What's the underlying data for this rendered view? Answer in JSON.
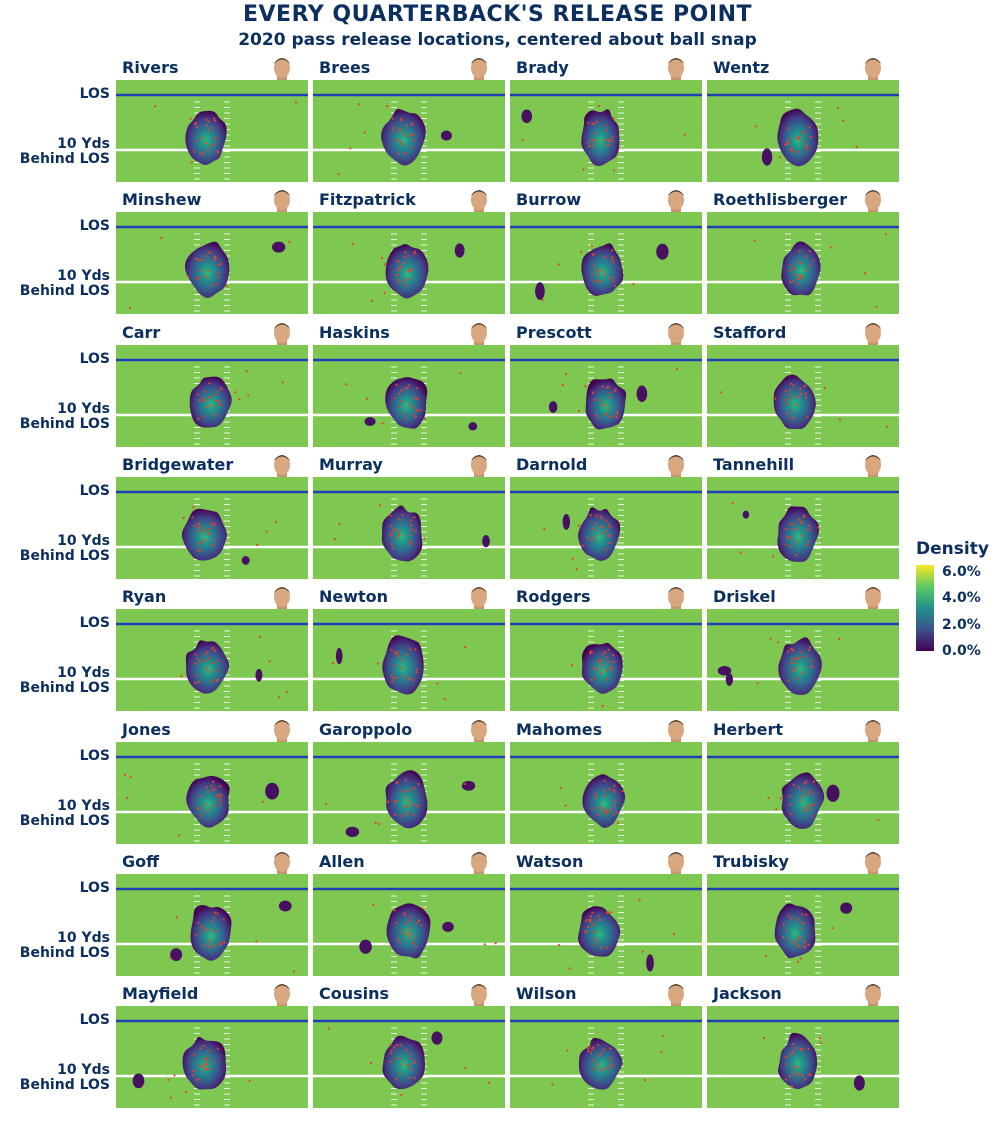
{
  "title": "EVERY QUARTERBACK'S RELEASE POINT",
  "subtitle": "2020 pass release locations, centered about ball snap",
  "row_labels": {
    "los": "LOS",
    "ten_a": "10 Yds",
    "ten_b": "Behind LOS"
  },
  "legend": {
    "title": "Density",
    "labels": [
      "6.0%",
      "4.0%",
      "2.0%",
      "0.0%"
    ]
  },
  "colors": {
    "field": "#7ec851",
    "los_line": "#1f3fb5",
    "text": "#0b2f5e",
    "point": "#e8412b"
  },
  "chart_data": {
    "type": "heatmap",
    "title": "EVERY QUARTERBACK'S RELEASE POINT",
    "subtitle": "2020 pass release locations, centered about ball snap",
    "ylabel_ticks": [
      "LOS",
      "10 Yds Behind LOS"
    ],
    "colorbar": {
      "title": "Density",
      "min": 0.0,
      "max": 6.0,
      "ticks": [
        0.0,
        2.0,
        4.0,
        6.0
      ],
      "unit": "%"
    },
    "panels": [
      {
        "name": "Rivers"
      },
      {
        "name": "Brees"
      },
      {
        "name": "Brady"
      },
      {
        "name": "Wentz"
      },
      {
        "name": "Minshew"
      },
      {
        "name": "Fitzpatrick"
      },
      {
        "name": "Burrow"
      },
      {
        "name": "Roethlisberger"
      },
      {
        "name": "Carr"
      },
      {
        "name": "Haskins"
      },
      {
        "name": "Prescott"
      },
      {
        "name": "Stafford"
      },
      {
        "name": "Bridgewater"
      },
      {
        "name": "Murray"
      },
      {
        "name": "Darnold"
      },
      {
        "name": "Tannehill"
      },
      {
        "name": "Ryan"
      },
      {
        "name": "Newton"
      },
      {
        "name": "Rodgers"
      },
      {
        "name": "Driskel"
      },
      {
        "name": "Jones"
      },
      {
        "name": "Garoppolo"
      },
      {
        "name": "Mahomes"
      },
      {
        "name": "Herbert"
      },
      {
        "name": "Goff"
      },
      {
        "name": "Allen"
      },
      {
        "name": "Watson"
      },
      {
        "name": "Trubisky"
      },
      {
        "name": "Mayfield"
      },
      {
        "name": "Cousins"
      },
      {
        "name": "Wilson"
      },
      {
        "name": "Jackson"
      }
    ]
  }
}
